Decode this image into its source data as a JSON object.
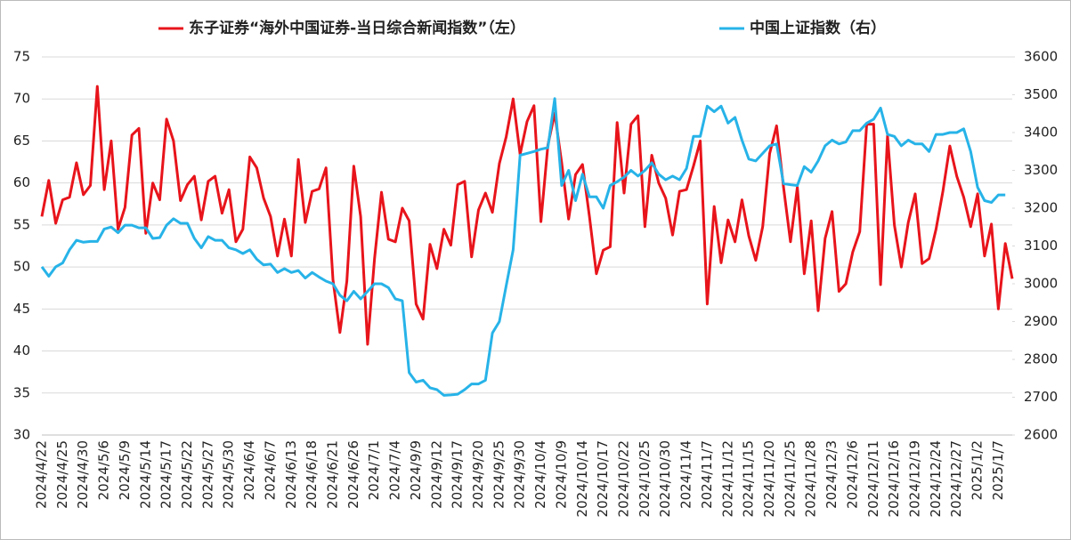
{
  "chart_data": {
    "type": "line",
    "categories": [
      "2024/4/22",
      null,
      null,
      "2024/4/25",
      null,
      null,
      "2024/4/30",
      null,
      null,
      "2024/5/6",
      null,
      null,
      "2024/5/9",
      null,
      null,
      "2024/5/14",
      null,
      null,
      "2024/5/17",
      null,
      null,
      "2024/5/22",
      null,
      null,
      "2024/5/27",
      null,
      null,
      "2024/5/30",
      null,
      null,
      "2024/6/4",
      null,
      null,
      "2024/6/7",
      null,
      null,
      "2024/6/13",
      null,
      null,
      "2024/6/18",
      null,
      null,
      "2024/6/21",
      null,
      null,
      "2024/6/26",
      null,
      null,
      "2024/7/1",
      null,
      null,
      "2024/7/4",
      null,
      null,
      "2024/9/9",
      null,
      null,
      "2024/9/12",
      null,
      null,
      "2024/9/17",
      null,
      null,
      "2024/9/20",
      null,
      null,
      "2024/9/25",
      null,
      null,
      "2024/9/30",
      null,
      null,
      "2024/10/4",
      null,
      null,
      "2024/10/9",
      null,
      null,
      "2024/10/14",
      null,
      null,
      "2024/10/17",
      null,
      null,
      "2024/10/22",
      null,
      null,
      "2024/10/25",
      null,
      null,
      "2024/10/30",
      null,
      null,
      "2024/11/4",
      null,
      null,
      "2024/11/7",
      null,
      null,
      "2024/11/12",
      null,
      null,
      "2024/11/15",
      null,
      null,
      "2024/11/20",
      null,
      null,
      "2024/11/25",
      null,
      null,
      "2024/11/28",
      null,
      null,
      "2024/12/3",
      null,
      null,
      "2024/12/6",
      null,
      null,
      "2024/12/11",
      null,
      null,
      "2024/12/16",
      null,
      null,
      "2024/12/19",
      null,
      null,
      "2024/12/24",
      null,
      null,
      "2024/12/27",
      null,
      null,
      "2025/1/2",
      null,
      null,
      "2025/1/7",
      null,
      null
    ],
    "series": [
      {
        "name": "东子证券“海外中国证券-当日综合新闻指数”（左）",
        "color": "#e8141b",
        "axis": "y",
        "values": [
          56,
          60.3,
          55.2,
          58,
          58.3,
          62.4,
          58.6,
          59.7,
          71.5,
          59.2,
          65,
          54.5,
          57.1,
          65.7,
          66.5,
          54,
          60,
          58,
          67.6,
          65,
          57.9,
          59.8,
          60.8,
          55.6,
          60.2,
          60.8,
          56.4,
          59.2,
          53,
          54.5,
          63.1,
          61.8,
          58.2,
          56,
          51.3,
          55.7,
          51.3,
          62.8,
          55.3,
          59,
          59.3,
          61.8,
          48.5,
          42.2,
          48.3,
          62,
          56,
          40.8,
          51,
          58.9,
          53.3,
          53,
          57,
          55.5,
          45.6,
          43.8,
          52.7,
          49.8,
          54.5,
          52.6,
          59.8,
          60.2,
          51.2,
          56.8,
          58.8,
          56.5,
          62.3,
          65.5,
          70,
          63.4,
          67.3,
          69.2,
          55.4,
          64.5,
          68.3,
          62.4,
          55.7,
          61,
          62.2,
          56,
          49.2,
          52,
          52.4,
          67.2,
          58.8,
          67,
          68,
          54.8,
          63.3,
          60,
          58.2,
          53.8,
          59,
          59.2,
          62,
          65,
          45.6,
          57.2,
          50.5,
          55.6,
          53,
          58,
          53.7,
          50.8,
          54.8,
          63.5,
          66.8,
          59.5,
          53,
          59.5,
          49.2,
          55.5,
          44.8,
          53.4,
          56.6,
          47.1,
          48,
          51.8,
          54.2,
          67,
          67,
          47.9,
          65.6,
          55,
          50,
          55.3,
          58.7,
          50.4,
          51,
          54.5,
          59,
          64.4,
          60.8,
          58.3,
          54.8,
          58.7,
          51.3,
          55.1,
          45,
          52.8,
          48.6
        ]
      },
      {
        "name": "中国上证指数（右）",
        "color": "#27b3e8",
        "axis": "y2",
        "values": [
          3045,
          3020,
          3045,
          3055,
          3090,
          3115,
          3110,
          3112,
          3112,
          3145,
          3150,
          3135,
          3155,
          3155,
          3148,
          3148,
          3120,
          3122,
          3155,
          3172,
          3160,
          3160,
          3120,
          3095,
          3125,
          3115,
          3115,
          3095,
          3090,
          3080,
          3090,
          3065,
          3050,
          3052,
          3030,
          3040,
          3030,
          3035,
          3015,
          3030,
          3018,
          3007,
          3000,
          2970,
          2955,
          2980,
          2960,
          2980,
          3000,
          3000,
          2990,
          2960,
          2955,
          2765,
          2740,
          2745,
          2725,
          2720,
          2705,
          2706,
          2708,
          2720,
          2735,
          2735,
          2745,
          2870,
          2900,
          2995,
          3090,
          3340,
          3345,
          3350,
          3356,
          3360,
          3490,
          3260,
          3300,
          3220,
          3290,
          3230,
          3230,
          3200,
          3260,
          3270,
          3282,
          3300,
          3285,
          3300,
          3320,
          3290,
          3275,
          3285,
          3275,
          3305,
          3390,
          3390,
          3470,
          3455,
          3470,
          3425,
          3440,
          3380,
          3330,
          3325,
          3345,
          3365,
          3370,
          3265,
          3262,
          3260,
          3310,
          3295,
          3325,
          3365,
          3380,
          3370,
          3375,
          3405,
          3405,
          3425,
          3435,
          3465,
          3395,
          3390,
          3365,
          3380,
          3370,
          3370,
          3350,
          3395,
          3395,
          3400,
          3400,
          3410,
          3350,
          3255,
          3220,
          3215,
          3235,
          3235,
          null
        ]
      }
    ],
    "ylim": [
      30,
      75
    ],
    "yticks": [
      30,
      35,
      40,
      45,
      50,
      55,
      60,
      65,
      70,
      75
    ],
    "y2lim": [
      2600,
      3600
    ],
    "y2ticks": [
      2600,
      2700,
      2800,
      2900,
      3000,
      3100,
      3200,
      3300,
      3400,
      3500,
      3600
    ],
    "grid": true,
    "legend": "top"
  }
}
